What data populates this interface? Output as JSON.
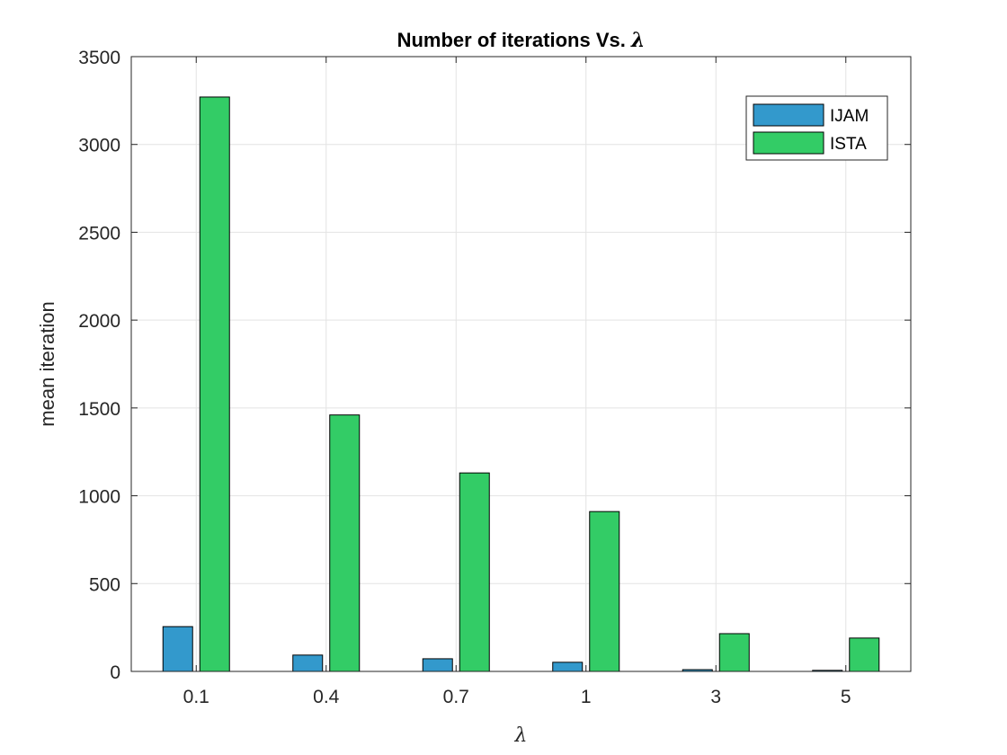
{
  "chart_data": {
    "type": "bar",
    "title": "Number of iterations Vs. ",
    "title_symbol": "λ",
    "xlabel": "λ",
    "ylabel": "mean iteration",
    "categories": [
      "0.1",
      "0.4",
      "0.7",
      "1",
      "3",
      "5"
    ],
    "ylim": [
      0,
      3500
    ],
    "yticks": [
      "0",
      "500",
      "1000",
      "1500",
      "2000",
      "2500",
      "3000",
      "3500"
    ],
    "grid": true,
    "legend_position": "top-right",
    "series": [
      {
        "name": "IJAM",
        "color": "#3399cc",
        "values": [
          255,
          93,
          72,
          52,
          10,
          6
        ]
      },
      {
        "name": "ISTA",
        "color": "#33cc66",
        "values": [
          3270,
          1460,
          1130,
          910,
          215,
          190
        ]
      }
    ]
  }
}
